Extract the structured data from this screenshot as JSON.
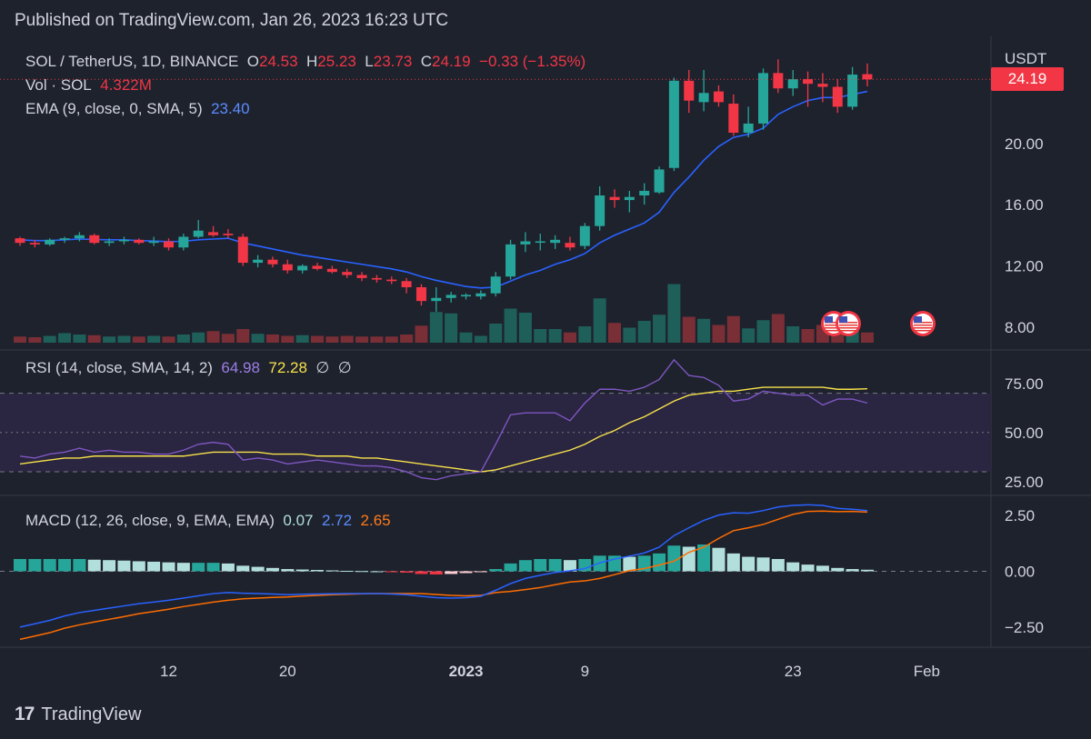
{
  "published": "Published on TradingView.com, Jan 26, 2023 16:23 UTC",
  "footer": {
    "brand": "TradingView"
  },
  "legend": {
    "symbol": "SOL / TetherUS, 1D, BINANCE",
    "o_label": "O",
    "o_value": "24.53",
    "h_label": "H",
    "h_value": "25.23",
    "l_label": "L",
    "l_value": "23.73",
    "c_label": "C",
    "c_value": "24.19",
    "change": "−0.33 (−1.35%)",
    "vol_label": "Vol · SOL",
    "vol_value": "4.322M",
    "ema_label": "EMA (9, close, 0, SMA, 5)",
    "ema_value": "23.40"
  },
  "rsi_legend": {
    "label": "RSI (14, close, SMA, 14, 2)",
    "rsi_value": "64.98",
    "sma_value": "72.28",
    "extra1": "∅",
    "extra2": "∅"
  },
  "macd_legend": {
    "label": "MACD (12, 26, close, 9, EMA, EMA)",
    "hist_value": "0.07",
    "macd_value": "2.72",
    "signal_value": "2.65"
  },
  "currency": "USDT",
  "last_price": "24.19",
  "colors": {
    "bg": "#1e222d",
    "up": "#26a69a",
    "down": "#f23645",
    "ema": "#2962ff",
    "rsi": "#7e57c2",
    "rsi_sma": "#f7e24b",
    "macd": "#2962ff",
    "signal": "#ff6d00"
  },
  "chart_data": [
    {
      "type": "candlestick",
      "name": "price",
      "price_axis": [
        "8.00",
        "12.00",
        "16.00",
        "20.00"
      ],
      "ylim": [
        6.5,
        27
      ],
      "x_ticks": [
        {
          "label": "12",
          "index": 10
        },
        {
          "label": "20",
          "index": 18
        },
        {
          "label": "2023",
          "index": 30
        },
        {
          "label": "9",
          "index": 38
        },
        {
          "label": "23",
          "index": 52
        },
        {
          "label": "Feb",
          "index": 61
        }
      ],
      "candles": [
        [
          13.8,
          13.9,
          13.3,
          13.5
        ],
        [
          13.5,
          13.7,
          13.2,
          13.4
        ],
        [
          13.4,
          13.8,
          13.3,
          13.7
        ],
        [
          13.7,
          13.9,
          13.5,
          13.8
        ],
        [
          13.8,
          14.2,
          13.6,
          14.0
        ],
        [
          14.0,
          14.1,
          13.4,
          13.5
        ],
        [
          13.5,
          13.8,
          13.3,
          13.6
        ],
        [
          13.6,
          13.9,
          13.4,
          13.7
        ],
        [
          13.7,
          13.8,
          13.4,
          13.5
        ],
        [
          13.5,
          13.9,
          13.3,
          13.6
        ],
        [
          13.6,
          13.8,
          13.0,
          13.2
        ],
        [
          13.2,
          14.1,
          13.0,
          13.9
        ],
        [
          13.9,
          15.0,
          13.8,
          14.3
        ],
        [
          14.2,
          14.6,
          13.9,
          14.0
        ],
        [
          14.1,
          14.4,
          13.8,
          14.0
        ],
        [
          13.9,
          14.1,
          12.0,
          12.2
        ],
        [
          12.2,
          12.7,
          11.9,
          12.4
        ],
        [
          12.4,
          12.6,
          11.9,
          12.1
        ],
        [
          12.1,
          12.4,
          11.5,
          11.7
        ],
        [
          11.7,
          12.1,
          11.5,
          12.0
        ],
        [
          12.0,
          12.2,
          11.7,
          11.8
        ],
        [
          11.8,
          12.0,
          11.5,
          11.6
        ],
        [
          11.6,
          11.8,
          11.2,
          11.4
        ],
        [
          11.4,
          11.6,
          11.0,
          11.2
        ],
        [
          11.2,
          11.4,
          10.9,
          11.1
        ],
        [
          11.1,
          11.3,
          10.8,
          11.0
        ],
        [
          11.0,
          11.2,
          10.2,
          10.6
        ],
        [
          10.6,
          10.8,
          9.4,
          9.7
        ],
        [
          9.7,
          10.6,
          9.0,
          9.9
        ],
        [
          9.9,
          10.3,
          9.6,
          10.1
        ],
        [
          10.0,
          10.2,
          9.8,
          10.1
        ],
        [
          10.0,
          10.4,
          9.8,
          10.2
        ],
        [
          10.2,
          11.6,
          10.0,
          11.3
        ],
        [
          11.3,
          13.7,
          11.1,
          13.4
        ],
        [
          13.4,
          14.2,
          12.9,
          13.6
        ],
        [
          13.6,
          14.1,
          13.0,
          13.6
        ],
        [
          13.5,
          14.0,
          13.1,
          13.7
        ],
        [
          13.5,
          13.9,
          13.0,
          13.2
        ],
        [
          13.3,
          14.8,
          13.1,
          14.6
        ],
        [
          14.6,
          17.2,
          14.3,
          16.6
        ],
        [
          16.5,
          17.0,
          15.8,
          16.3
        ],
        [
          16.3,
          16.9,
          15.5,
          16.5
        ],
        [
          16.6,
          17.4,
          16.0,
          16.9
        ],
        [
          16.8,
          18.5,
          16.7,
          18.3
        ],
        [
          18.4,
          24.3,
          18.2,
          24.1
        ],
        [
          24.1,
          24.8,
          22.0,
          22.8
        ],
        [
          22.7,
          24.8,
          22.1,
          23.3
        ],
        [
          23.4,
          23.8,
          22.4,
          22.7
        ],
        [
          22.6,
          23.2,
          20.5,
          20.7
        ],
        [
          20.7,
          22.4,
          20.4,
          21.3
        ],
        [
          21.3,
          24.9,
          20.9,
          24.6
        ],
        [
          24.6,
          25.5,
          23.3,
          23.6
        ],
        [
          23.6,
          24.8,
          23.1,
          24.2
        ],
        [
          24.2,
          24.7,
          22.4,
          23.9
        ],
        [
          23.9,
          24.6,
          22.7,
          23.7
        ],
        [
          23.7,
          24.2,
          22.0,
          22.4
        ],
        [
          22.4,
          25.0,
          22.2,
          24.5
        ],
        [
          24.53,
          25.23,
          23.73,
          24.19
        ]
      ],
      "ema": [
        13.7,
        13.65,
        13.65,
        13.7,
        13.75,
        13.72,
        13.7,
        13.7,
        13.65,
        13.62,
        13.58,
        13.6,
        13.7,
        13.75,
        13.8,
        13.5,
        13.3,
        13.1,
        12.9,
        12.7,
        12.55,
        12.4,
        12.25,
        12.1,
        11.95,
        11.8,
        11.6,
        11.3,
        11.05,
        10.85,
        10.65,
        10.55,
        10.6,
        11.0,
        11.4,
        11.7,
        12.1,
        12.4,
        12.8,
        13.5,
        14.0,
        14.4,
        14.8,
        15.5,
        16.8,
        17.8,
        18.9,
        19.8,
        20.4,
        20.6,
        21.0,
        21.9,
        22.4,
        22.8,
        23.0,
        23.0,
        23.2,
        23.4
      ],
      "volume": [
        0.9,
        0.8,
        1.0,
        1.4,
        1.2,
        1.1,
        0.9,
        1.0,
        0.9,
        1.0,
        0.9,
        1.2,
        1.5,
        1.7,
        1.3,
        2.0,
        1.3,
        1.2,
        1.0,
        1.1,
        1.0,
        0.9,
        1.0,
        0.9,
        0.9,
        0.9,
        1.2,
        2.5,
        4.5,
        4.3,
        1.5,
        1.0,
        2.8,
        5.0,
        4.4,
        2.0,
        2.0,
        1.5,
        2.4,
        6.5,
        2.9,
        2.2,
        3.2,
        4.1,
        8.6,
        3.8,
        3.5,
        2.6,
        3.9,
        2.1,
        3.3,
        4.2,
        2.4,
        2.0,
        2.6,
        2.0,
        1.7,
        1.5
      ]
    },
    {
      "type": "line",
      "name": "RSI",
      "y_axis": [
        "75.00",
        "50.00",
        "25.00"
      ],
      "ylim": [
        18,
        92
      ],
      "levels": [
        70,
        50,
        30
      ],
      "series": [
        {
          "values": [
            38,
            37,
            39,
            40,
            42,
            40,
            41,
            40,
            40,
            39,
            39,
            41,
            44,
            45,
            44,
            36,
            37,
            36,
            34,
            35,
            36,
            35,
            34,
            33,
            33,
            32,
            30,
            27,
            26,
            28,
            29,
            30,
            44,
            59,
            60,
            60,
            60,
            56,
            65,
            72,
            72,
            71,
            73,
            77,
            87,
            79,
            78,
            74,
            66,
            67,
            71,
            70,
            69,
            69,
            64,
            67,
            67,
            65
          ]
        },
        {
          "values": [
            34,
            35,
            36,
            37,
            37,
            38,
            38,
            38,
            38,
            38,
            38,
            38,
            39,
            40,
            40,
            40,
            40,
            39,
            39,
            39,
            38,
            38,
            38,
            37,
            37,
            36,
            35,
            34,
            33,
            32,
            31,
            30,
            31,
            33,
            35,
            37,
            39,
            41,
            44,
            48,
            51,
            55,
            58,
            62,
            66,
            69,
            70,
            71,
            71,
            72,
            73,
            73,
            73,
            73,
            73,
            72,
            72,
            72.28
          ]
        }
      ]
    },
    {
      "type": "bar",
      "name": "MACD",
      "y_axis": [
        "2.50",
        "0.00",
        "−2.50"
      ],
      "ylim": [
        -3.4,
        3.4
      ],
      "histogram": [
        0.55,
        0.55,
        0.55,
        0.55,
        0.55,
        0.52,
        0.5,
        0.48,
        0.45,
        0.43,
        0.4,
        0.38,
        0.38,
        0.38,
        0.35,
        0.25,
        0.2,
        0.15,
        0.1,
        0.08,
        0.06,
        0.04,
        0.02,
        0.01,
        0.0,
        -0.02,
        -0.06,
        -0.12,
        -0.14,
        -0.12,
        -0.08,
        -0.04,
        0.1,
        0.35,
        0.5,
        0.55,
        0.55,
        0.5,
        0.55,
        0.7,
        0.7,
        0.65,
        0.7,
        0.8,
        1.15,
        1.1,
        1.2,
        1.05,
        0.8,
        0.65,
        0.62,
        0.55,
        0.4,
        0.3,
        0.25,
        0.15,
        0.1,
        0.07
      ],
      "series": [
        {
          "values": [
            -2.5,
            -2.35,
            -2.2,
            -2.0,
            -1.85,
            -1.75,
            -1.65,
            -1.55,
            -1.45,
            -1.38,
            -1.3,
            -1.2,
            -1.1,
            -1.0,
            -0.95,
            -0.98,
            -1.0,
            -1.02,
            -1.05,
            -1.03,
            -1.02,
            -1.01,
            -1.0,
            -1.0,
            -1.0,
            -1.02,
            -1.05,
            -1.12,
            -1.18,
            -1.2,
            -1.18,
            -1.12,
            -0.85,
            -0.55,
            -0.32,
            -0.18,
            -0.05,
            0.02,
            0.12,
            0.38,
            0.55,
            0.68,
            0.82,
            1.08,
            1.6,
            1.95,
            2.28,
            2.52,
            2.62,
            2.6,
            2.72,
            2.88,
            2.95,
            2.98,
            2.95,
            2.82,
            2.78,
            2.72
          ]
        },
        {
          "values": [
            -3.05,
            -2.9,
            -2.75,
            -2.55,
            -2.4,
            -2.27,
            -2.15,
            -2.03,
            -1.9,
            -1.8,
            -1.7,
            -1.58,
            -1.48,
            -1.38,
            -1.3,
            -1.23,
            -1.2,
            -1.17,
            -1.15,
            -1.11,
            -1.08,
            -1.05,
            -1.03,
            -1.01,
            -1.0,
            -1.0,
            -1.0,
            -1.0,
            -1.04,
            -1.08,
            -1.1,
            -1.08,
            -0.95,
            -0.9,
            -0.82,
            -0.73,
            -0.6,
            -0.48,
            -0.43,
            -0.32,
            -0.15,
            0.03,
            0.12,
            0.28,
            0.45,
            0.85,
            1.08,
            1.47,
            1.82,
            1.95,
            2.1,
            2.33,
            2.55,
            2.68,
            2.7,
            2.67,
            2.68,
            2.65
          ]
        }
      ]
    }
  ]
}
